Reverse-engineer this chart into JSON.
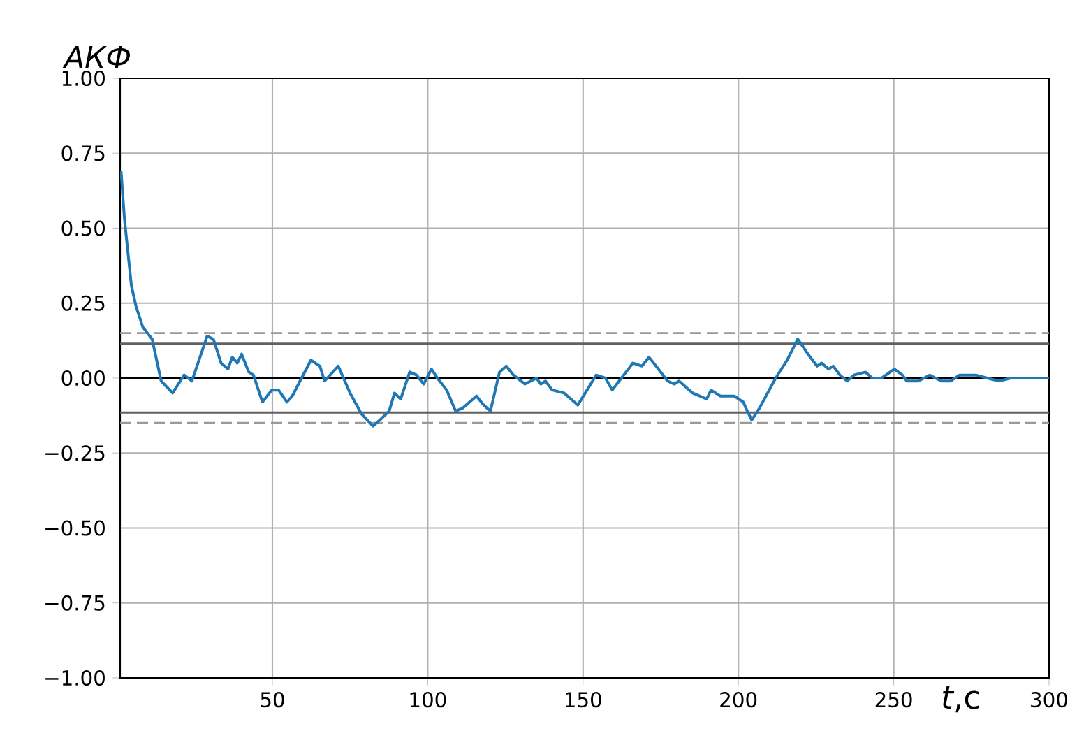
{
  "chart_data": {
    "type": "line",
    "xlabel": "*t*,с",
    "ylabel": "АКФ",
    "xlim": [
      1,
      300
    ],
    "ylim": [
      -1,
      1
    ],
    "xticks": [
      50,
      100,
      150,
      200,
      250,
      300
    ],
    "yticks": [
      {
        "value": -1,
        "label": "−1.00"
      },
      {
        "value": -0.75,
        "label": "−0.75"
      },
      {
        "value": -0.5,
        "label": "−0.50"
      },
      {
        "value": -0.25,
        "label": "−0.25"
      },
      {
        "value": 0,
        "label": "0.00"
      },
      {
        "value": 0.25,
        "label": "0.25"
      },
      {
        "value": 0.5,
        "label": "0.50"
      },
      {
        "value": 0.75,
        "label": "0.75"
      },
      {
        "value": 1,
        "label": "1.00"
      }
    ],
    "grid": true,
    "marker": "none",
    "line_style": "solid",
    "series": [
      {
        "color": "#1f77b4",
        "x": [
          1.3,
          2.4,
          4.6,
          6.1,
          8.3,
          11.3,
          14.2,
          17.9,
          21.6,
          24.1,
          29,
          31,
          33.5,
          35.7,
          37.1,
          38.7,
          40.1,
          42.4,
          43.9,
          46.8,
          49.8,
          52,
          54.7,
          56.4,
          59.4,
          62.4,
          63.8,
          65.3,
          66.8,
          71.2,
          75,
          78.7,
          82.4,
          84.6,
          87.6,
          89.3,
          91.3,
          94.2,
          96.4,
          98.7,
          101.2,
          103.1,
          106.1,
          109,
          111.3,
          115.7,
          118,
          120.2,
          123.1,
          125.3,
          127.6,
          131.3,
          135,
          136.4,
          137.9,
          140.1,
          143.9,
          148.3,
          151.3,
          154.2,
          157.2,
          159.4,
          161.6,
          164.6,
          166,
          169,
          171.2,
          173.5,
          177.2,
          179.4,
          180.9,
          185.3,
          189.8,
          191.2,
          194.2,
          198.7,
          201.6,
          202.4,
          204.3,
          206.8,
          212,
          215.7,
          219.1,
          222.4,
          225.3,
          226.8,
          229,
          230.5,
          232.7,
          235,
          237.2,
          240.9,
          243.1,
          246.1,
          250.2,
          252.8,
          254.2,
          257.9,
          261.6,
          265.3,
          268.3,
          271.2,
          276.4,
          280.1,
          283.9,
          287.6,
          296.4,
          300
        ],
        "values": [
          0.69,
          0.53,
          0.31,
          0.24,
          0.17,
          0.13,
          -0.01,
          -0.05,
          0.01,
          -0.01,
          0.14,
          0.13,
          0.05,
          0.03,
          0.07,
          0.05,
          0.08,
          0.02,
          0.01,
          -0.08,
          -0.04,
          -0.04,
          -0.08,
          -0.06,
          0.0,
          0.06,
          0.05,
          0.04,
          -0.01,
          0.04,
          -0.05,
          -0.12,
          -0.16,
          -0.14,
          -0.11,
          -0.05,
          -0.07,
          0.02,
          0.01,
          -0.02,
          0.03,
          0.0,
          -0.04,
          -0.11,
          -0.1,
          -0.06,
          -0.09,
          -0.11,
          0.02,
          0.04,
          0.01,
          -0.02,
          0.0,
          -0.02,
          -0.01,
          -0.04,
          -0.05,
          -0.09,
          -0.04,
          0.01,
          0.0,
          -0.04,
          -0.01,
          0.03,
          0.05,
          0.04,
          0.07,
          0.04,
          -0.01,
          -0.02,
          -0.01,
          -0.05,
          -0.07,
          -0.04,
          -0.06,
          -0.06,
          -0.08,
          -0.1,
          -0.14,
          -0.1,
          0.0,
          0.06,
          0.13,
          0.08,
          0.04,
          0.05,
          0.03,
          0.04,
          0.01,
          -0.01,
          0.01,
          0.02,
          0.0,
          0.0,
          0.03,
          0.01,
          -0.01,
          -0.01,
          0.01,
          -0.01,
          -0.01,
          0.01,
          0.01,
          0.0,
          -0.01,
          0.0,
          0.0,
          0.0
        ]
      }
    ],
    "ref_lines": [
      {
        "axis": "y",
        "value": 0,
        "color": "#000000",
        "line_style": "solid"
      },
      {
        "axis": "y",
        "value": 0.115,
        "color": "#606060",
        "line_style": "solid"
      },
      {
        "axis": "y",
        "value": -0.115,
        "color": "#606060",
        "line_style": "solid"
      },
      {
        "axis": "y",
        "value": 0.15,
        "color": "#999999",
        "line_style": "dashed"
      },
      {
        "axis": "y",
        "value": -0.15,
        "color": "#999999",
        "line_style": "dashed"
      }
    ]
  }
}
